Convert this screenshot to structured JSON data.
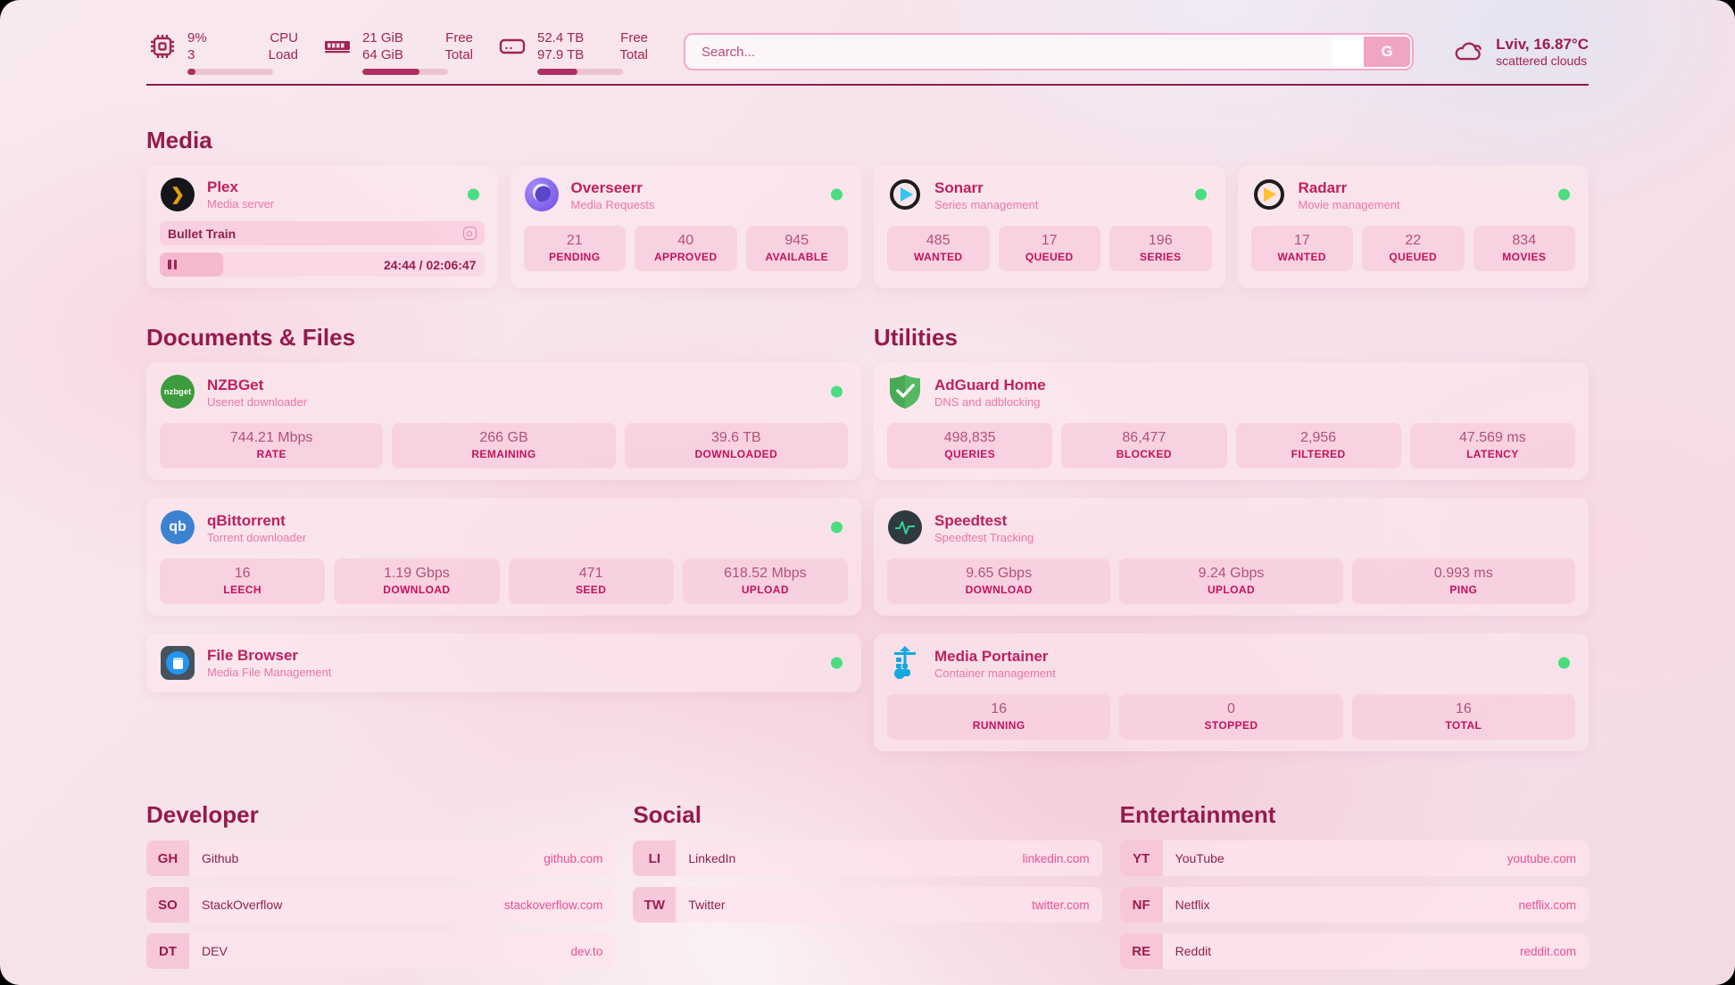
{
  "topbar": {
    "cpu": {
      "value1": "9%",
      "label1": "CPU",
      "value2": "3",
      "label2": "Load",
      "percent": 9
    },
    "ram": {
      "value1": "21 GiB",
      "label1": "Free",
      "value2": "64 GiB",
      "label2": "Total",
      "percent": 67
    },
    "disk": {
      "value1": "52.4 TB",
      "label1": "Free",
      "value2": "97.9 TB",
      "label2": "Total",
      "percent": 47
    },
    "search": {
      "placeholder": "Search...",
      "button_label": "G"
    },
    "weather": {
      "location": "Lviv, 16.87°C",
      "condition": "scattered clouds"
    }
  },
  "media": {
    "heading": "Media",
    "plex": {
      "title": "Plex",
      "subtitle": "Media server",
      "now_playing": "Bullet Train",
      "time": "24:44 / 02:06:47",
      "progress_percent": 19.5
    },
    "overseerr": {
      "title": "Overseerr",
      "subtitle": "Media Requests",
      "stats": [
        {
          "value": "21",
          "label": "PENDING"
        },
        {
          "value": "40",
          "label": "APPROVED"
        },
        {
          "value": "945",
          "label": "AVAILABLE"
        }
      ]
    },
    "sonarr": {
      "title": "Sonarr",
      "subtitle": "Series management",
      "stats": [
        {
          "value": "485",
          "label": "WANTED"
        },
        {
          "value": "17",
          "label": "QUEUED"
        },
        {
          "value": "196",
          "label": "SERIES"
        }
      ]
    },
    "radarr": {
      "title": "Radarr",
      "subtitle": "Movie management",
      "stats": [
        {
          "value": "17",
          "label": "WANTED"
        },
        {
          "value": "22",
          "label": "QUEUED"
        },
        {
          "value": "834",
          "label": "MOVIES"
        }
      ]
    }
  },
  "documents": {
    "heading": "Documents & Files",
    "nzbget": {
      "title": "NZBGet",
      "subtitle": "Usenet downloader",
      "icon_text": "nzbget",
      "stats": [
        {
          "value": "744.21 Mbps",
          "label": "RATE"
        },
        {
          "value": "266 GB",
          "label": "REMAINING"
        },
        {
          "value": "39.6 TB",
          "label": "DOWNLOADED"
        }
      ]
    },
    "qbittorrent": {
      "title": "qBittorrent",
      "subtitle": "Torrent downloader",
      "icon_text": "qb",
      "stats": [
        {
          "value": "16",
          "label": "LEECH"
        },
        {
          "value": "1.19 Gbps",
          "label": "DOWNLOAD"
        },
        {
          "value": "471",
          "label": "SEED"
        },
        {
          "value": "618.52 Mbps",
          "label": "UPLOAD"
        }
      ]
    },
    "filebrowser": {
      "title": "File Browser",
      "subtitle": "Media File Management"
    }
  },
  "utilities": {
    "heading": "Utilities",
    "adguard": {
      "title": "AdGuard Home",
      "subtitle": "DNS and adblocking",
      "stats": [
        {
          "value": "498,835",
          "label": "QUERIES"
        },
        {
          "value": "86,477",
          "label": "BLOCKED"
        },
        {
          "value": "2,956",
          "label": "FILTERED"
        },
        {
          "value": "47.569 ms",
          "label": "LATENCY"
        }
      ]
    },
    "speedtest": {
      "title": "Speedtest",
      "subtitle": "Speedtest Tracking",
      "stats": [
        {
          "value": "9.65 Gbps",
          "label": "DOWNLOAD"
        },
        {
          "value": "9.24 Gbps",
          "label": "UPLOAD"
        },
        {
          "value": "0.993 ms",
          "label": "PING"
        }
      ]
    },
    "portainer": {
      "title": "Media Portainer",
      "subtitle": "Container management",
      "stats": [
        {
          "value": "16",
          "label": "RUNNING"
        },
        {
          "value": "0",
          "label": "STOPPED"
        },
        {
          "value": "16",
          "label": "TOTAL"
        }
      ]
    }
  },
  "bookmarks": {
    "developer": {
      "heading": "Developer",
      "items": [
        {
          "abbr": "GH",
          "name": "Github",
          "url": "github.com"
        },
        {
          "abbr": "SO",
          "name": "StackOverflow",
          "url": "stackoverflow.com"
        },
        {
          "abbr": "DT",
          "name": "DEV",
          "url": "dev.to"
        }
      ]
    },
    "social": {
      "heading": "Social",
      "items": [
        {
          "abbr": "LI",
          "name": "LinkedIn",
          "url": "linkedin.com"
        },
        {
          "abbr": "TW",
          "name": "Twitter",
          "url": "twitter.com"
        }
      ]
    },
    "entertainment": {
      "heading": "Entertainment",
      "items": [
        {
          "abbr": "YT",
          "name": "YouTube",
          "url": "youtube.com"
        },
        {
          "abbr": "NF",
          "name": "Netflix",
          "url": "netflix.com"
        },
        {
          "abbr": "RE",
          "name": "Reddit",
          "url": "reddit.com"
        }
      ]
    }
  },
  "colors": {
    "accent": "#9c1c4f",
    "status_green": "#4ade80"
  }
}
